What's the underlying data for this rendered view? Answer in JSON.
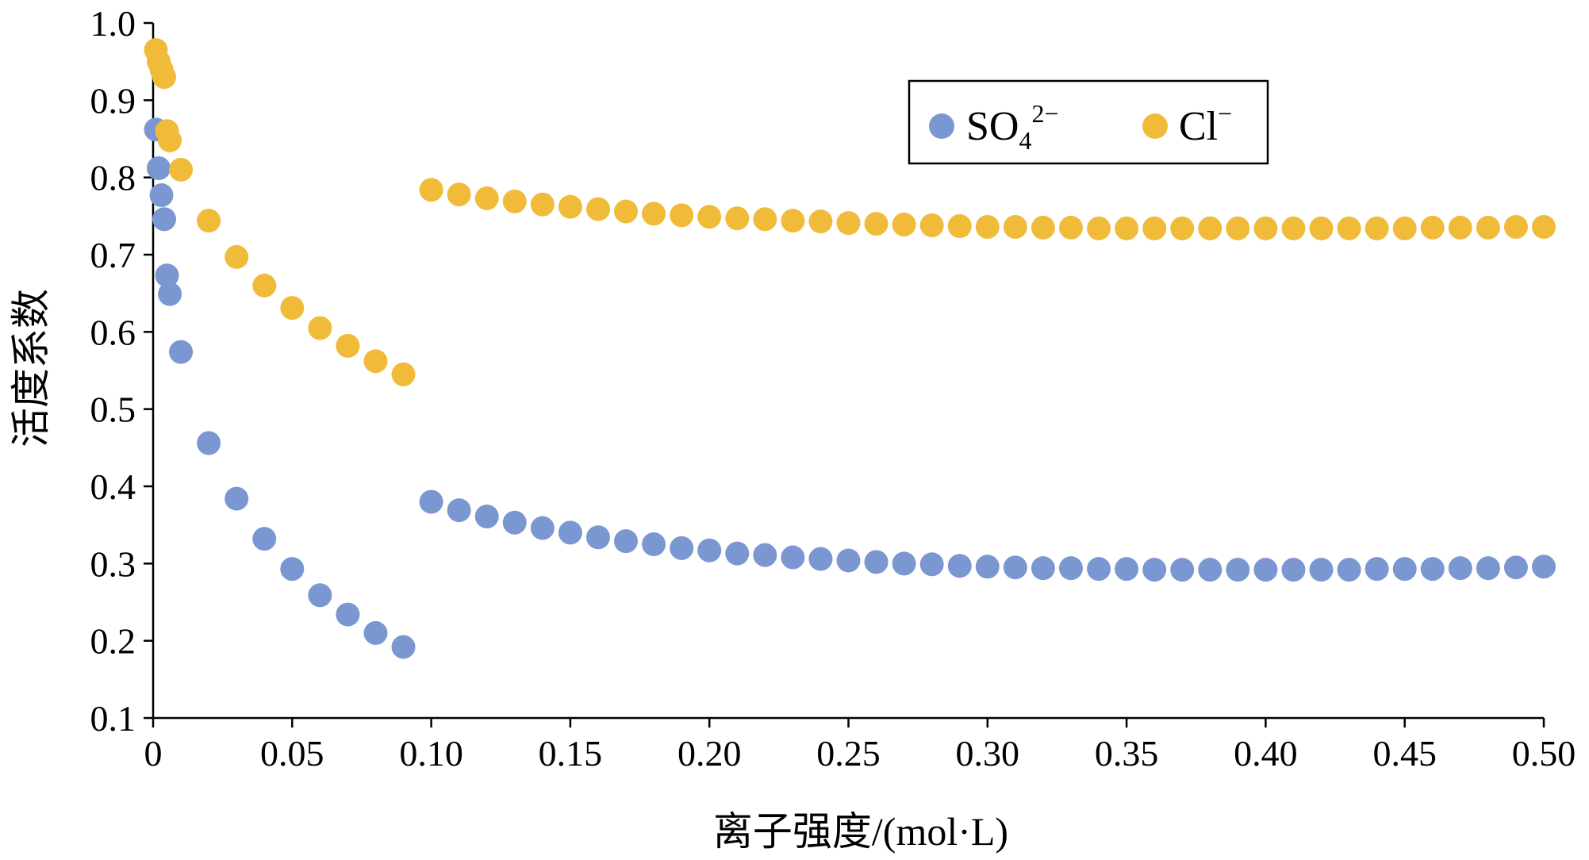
{
  "chart_data": {
    "type": "scatter",
    "title": "",
    "xlabel": "离子强度/(mol·L)",
    "ylabel": "活度系数",
    "xlim": [
      0,
      0.5
    ],
    "ylim": [
      0.1,
      1.0
    ],
    "x_ticks": [
      0,
      0.05,
      0.1,
      0.15,
      0.2,
      0.25,
      0.3,
      0.35,
      0.4,
      0.45,
      0.5
    ],
    "x_tick_labels": [
      "0",
      "0.05",
      "0.10",
      "0.15",
      "0.20",
      "0.25",
      "0.30",
      "0.35",
      "0.40",
      "0.45",
      "0.50"
    ],
    "y_ticks": [
      0.1,
      0.2,
      0.3,
      0.4,
      0.5,
      0.6,
      0.7,
      0.8,
      0.9,
      1.0
    ],
    "y_tick_labels": [
      "0.1",
      "0.2",
      "0.3",
      "0.4",
      "0.5",
      "0.6",
      "0.7",
      "0.8",
      "0.9",
      "1.0"
    ],
    "grid": false,
    "legend_position": "top-right",
    "series": [
      {
        "name": "SO₄²⁻",
        "legend_base": "SO",
        "legend_sub": "4",
        "legend_sup": "2−",
        "color": "#7b97d1",
        "points": [
          [
            0.001,
            0.862
          ],
          [
            0.002,
            0.812
          ],
          [
            0.003,
            0.777
          ],
          [
            0.004,
            0.746
          ],
          [
            0.005,
            0.673
          ],
          [
            0.006,
            0.649
          ],
          [
            0.01,
            0.574
          ],
          [
            0.02,
            0.456
          ],
          [
            0.03,
            0.384
          ],
          [
            0.04,
            0.332
          ],
          [
            0.05,
            0.293
          ],
          [
            0.06,
            0.259
          ],
          [
            0.07,
            0.234
          ],
          [
            0.08,
            0.21
          ],
          [
            0.09,
            0.192
          ],
          [
            0.1,
            0.38
          ],
          [
            0.11,
            0.369
          ],
          [
            0.12,
            0.361
          ],
          [
            0.13,
            0.353
          ],
          [
            0.14,
            0.346
          ],
          [
            0.15,
            0.34
          ],
          [
            0.16,
            0.334
          ],
          [
            0.17,
            0.329
          ],
          [
            0.18,
            0.325
          ],
          [
            0.19,
            0.32
          ],
          [
            0.2,
            0.317
          ],
          [
            0.21,
            0.313
          ],
          [
            0.22,
            0.311
          ],
          [
            0.23,
            0.308
          ],
          [
            0.24,
            0.306
          ],
          [
            0.25,
            0.304
          ],
          [
            0.26,
            0.302
          ],
          [
            0.27,
            0.3
          ],
          [
            0.28,
            0.299
          ],
          [
            0.29,
            0.297
          ],
          [
            0.3,
            0.296
          ],
          [
            0.31,
            0.295
          ],
          [
            0.32,
            0.294
          ],
          [
            0.33,
            0.294
          ],
          [
            0.34,
            0.293
          ],
          [
            0.35,
            0.293
          ],
          [
            0.36,
            0.292
          ],
          [
            0.37,
            0.292
          ],
          [
            0.38,
            0.292
          ],
          [
            0.39,
            0.292
          ],
          [
            0.4,
            0.292
          ],
          [
            0.41,
            0.292
          ],
          [
            0.42,
            0.292
          ],
          [
            0.43,
            0.292
          ],
          [
            0.44,
            0.293
          ],
          [
            0.45,
            0.293
          ],
          [
            0.46,
            0.293
          ],
          [
            0.47,
            0.294
          ],
          [
            0.48,
            0.294
          ],
          [
            0.49,
            0.295
          ],
          [
            0.5,
            0.296
          ]
        ]
      },
      {
        "name": "Cl⁻",
        "legend_base": "Cl",
        "legend_sub": "",
        "legend_sup": "−",
        "color": "#f1bb3a",
        "points": [
          [
            0.001,
            0.965
          ],
          [
            0.002,
            0.95
          ],
          [
            0.003,
            0.94
          ],
          [
            0.004,
            0.93
          ],
          [
            0.005,
            0.86
          ],
          [
            0.006,
            0.848
          ],
          [
            0.01,
            0.81
          ],
          [
            0.02,
            0.744
          ],
          [
            0.03,
            0.697
          ],
          [
            0.04,
            0.66
          ],
          [
            0.05,
            0.631
          ],
          [
            0.06,
            0.605
          ],
          [
            0.07,
            0.582
          ],
          [
            0.08,
            0.562
          ],
          [
            0.09,
            0.545
          ],
          [
            0.1,
            0.784
          ],
          [
            0.11,
            0.778
          ],
          [
            0.12,
            0.773
          ],
          [
            0.13,
            0.769
          ],
          [
            0.14,
            0.765
          ],
          [
            0.15,
            0.762
          ],
          [
            0.16,
            0.759
          ],
          [
            0.17,
            0.756
          ],
          [
            0.18,
            0.753
          ],
          [
            0.19,
            0.751
          ],
          [
            0.2,
            0.749
          ],
          [
            0.21,
            0.747
          ],
          [
            0.22,
            0.746
          ],
          [
            0.23,
            0.744
          ],
          [
            0.24,
            0.743
          ],
          [
            0.25,
            0.741
          ],
          [
            0.26,
            0.74
          ],
          [
            0.27,
            0.739
          ],
          [
            0.28,
            0.738
          ],
          [
            0.29,
            0.737
          ],
          [
            0.3,
            0.736
          ],
          [
            0.31,
            0.736
          ],
          [
            0.32,
            0.735
          ],
          [
            0.33,
            0.735
          ],
          [
            0.34,
            0.734
          ],
          [
            0.35,
            0.734
          ],
          [
            0.36,
            0.734
          ],
          [
            0.37,
            0.734
          ],
          [
            0.38,
            0.734
          ],
          [
            0.39,
            0.734
          ],
          [
            0.4,
            0.734
          ],
          [
            0.41,
            0.734
          ],
          [
            0.42,
            0.734
          ],
          [
            0.43,
            0.734
          ],
          [
            0.44,
            0.734
          ],
          [
            0.45,
            0.734
          ],
          [
            0.46,
            0.735
          ],
          [
            0.47,
            0.735
          ],
          [
            0.48,
            0.735
          ],
          [
            0.49,
            0.736
          ],
          [
            0.5,
            0.736
          ]
        ]
      }
    ]
  }
}
